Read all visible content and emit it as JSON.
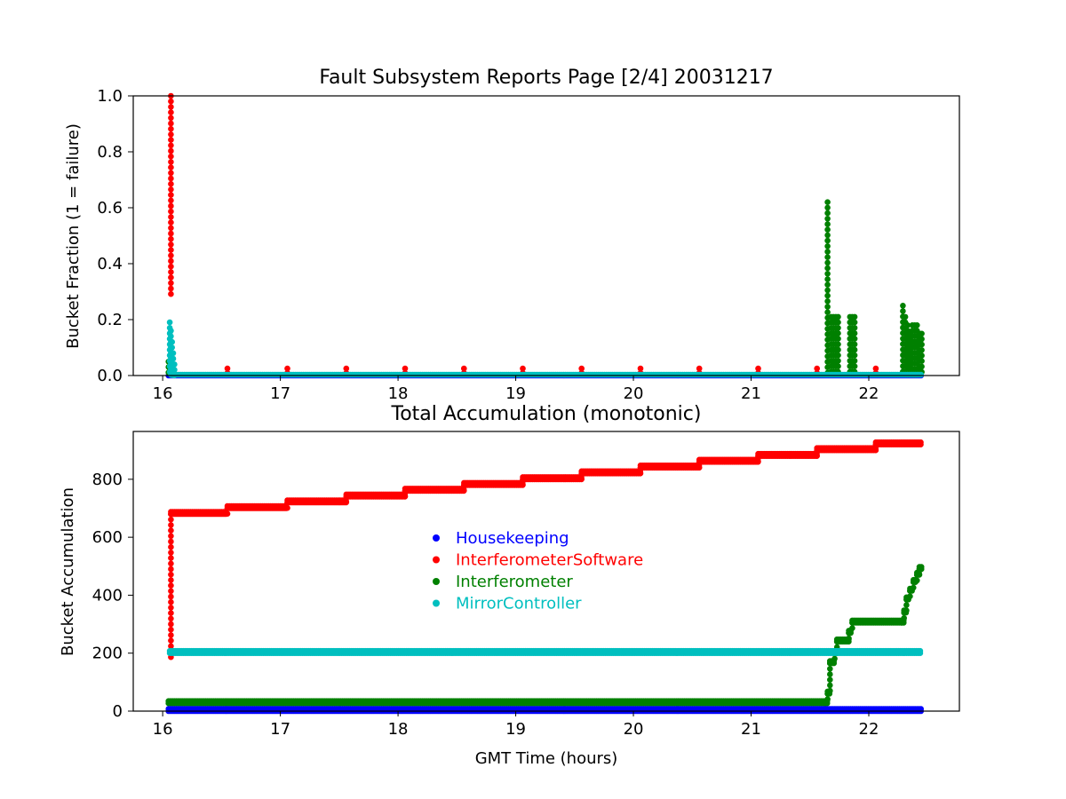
{
  "chart_data": [
    {
      "type": "scatter",
      "title": "Fault Subsystem Reports Page [2/4] 20031217",
      "xlabel": "",
      "ylabel": "Bucket Fraction (1 = failure)",
      "xlim": [
        15.75,
        22.77
      ],
      "ylim": [
        0,
        1
      ],
      "xticks": [
        "16",
        "17",
        "18",
        "19",
        "20",
        "21",
        "22"
      ],
      "yticks": [
        "0.0",
        "0.2",
        "0.4",
        "0.6",
        "0.8",
        "1.0"
      ],
      "grid": false,
      "series": [
        {
          "name": "Housekeeping",
          "color": "#0000ff",
          "baseline": {
            "x_start": 16.05,
            "x_end": 22.45,
            "y": 0
          },
          "points": []
        },
        {
          "name": "InterferometerSoftware",
          "color": "#ff0000",
          "vertical_spikes": [
            {
              "x": 16.07,
              "y_from": 0.28,
              "y_to": 1.0
            }
          ],
          "points": [
            [
              16.55,
              0.025
            ],
            [
              17.06,
              0.025
            ],
            [
              17.56,
              0.025
            ],
            [
              18.06,
              0.025
            ],
            [
              18.56,
              0.025
            ],
            [
              19.06,
              0.025
            ],
            [
              19.56,
              0.025
            ],
            [
              20.06,
              0.025
            ],
            [
              20.56,
              0.025
            ],
            [
              21.06,
              0.025
            ],
            [
              21.56,
              0.025
            ],
            [
              22.06,
              0.025
            ]
          ]
        },
        {
          "name": "Interferometer",
          "color": "#008000",
          "vertical_spikes": [
            {
              "x": 16.05,
              "y_from": 0,
              "y_to": 0.05
            },
            {
              "x": 21.65,
              "y_from": 0,
              "y_to": 0.62
            },
            {
              "x": 21.68,
              "y_from": 0,
              "y_to": 0.21
            },
            {
              "x": 21.7,
              "y_from": 0,
              "y_to": 0.21
            },
            {
              "x": 21.72,
              "y_from": 0,
              "y_to": 0.21
            },
            {
              "x": 21.74,
              "y_from": 0,
              "y_to": 0.21
            },
            {
              "x": 21.84,
              "y_from": 0,
              "y_to": 0.21
            },
            {
              "x": 21.86,
              "y_from": 0,
              "y_to": 0.21
            },
            {
              "x": 21.88,
              "y_from": 0,
              "y_to": 0.21
            },
            {
              "x": 22.29,
              "y_from": 0,
              "y_to": 0.25
            },
            {
              "x": 22.31,
              "y_from": 0,
              "y_to": 0.21
            },
            {
              "x": 22.33,
              "y_from": 0,
              "y_to": 0.18
            },
            {
              "x": 22.35,
              "y_from": 0,
              "y_to": 0.15
            },
            {
              "x": 22.37,
              "y_from": 0,
              "y_to": 0.18
            },
            {
              "x": 22.39,
              "y_from": 0,
              "y_to": 0.18
            },
            {
              "x": 22.41,
              "y_from": 0,
              "y_to": 0.18
            },
            {
              "x": 22.43,
              "y_from": 0,
              "y_to": 0.15
            },
            {
              "x": 22.45,
              "y_from": 0,
              "y_to": 0.15
            }
          ],
          "points": []
        },
        {
          "name": "MirrorController",
          "color": "#00bfbf",
          "vertical_spikes": [
            {
              "x": 16.06,
              "y_from": 0,
              "y_to": 0.19
            }
          ],
          "decay": [
            [
              16.07,
              0.16
            ],
            [
              16.08,
              0.12
            ],
            [
              16.09,
              0.08
            ],
            [
              16.1,
              0.04
            ]
          ],
          "baseline": {
            "x_start": 16.1,
            "x_end": 22.45,
            "y": 0.003
          },
          "points": []
        }
      ]
    },
    {
      "type": "scatter",
      "title": "Total Accumulation (monotonic)",
      "xlabel": "GMT Time (hours)",
      "ylabel": "Bucket Accumulation",
      "xlim": [
        15.75,
        22.77
      ],
      "ylim": [
        0,
        965
      ],
      "xticks": [
        "16",
        "17",
        "18",
        "19",
        "20",
        "21",
        "22"
      ],
      "yticks": [
        "0",
        "200",
        "400",
        "600",
        "800"
      ],
      "grid": false,
      "legend": {
        "placement": "center",
        "entries": [
          "Housekeeping",
          "InterferometerSoftware",
          "Interferometer",
          "MirrorController"
        ]
      },
      "series": [
        {
          "name": "Housekeeping",
          "color": "#0000ff",
          "steps": [
            [
              16.05,
              0
            ],
            [
              22.45,
              0
            ]
          ]
        },
        {
          "name": "InterferometerSoftware",
          "color": "#ff0000",
          "rise": {
            "x": 16.07,
            "y_from": 180,
            "y_to": 680
          },
          "steps": [
            [
              16.07,
              680
            ],
            [
              16.55,
              700
            ],
            [
              17.06,
              720
            ],
            [
              17.56,
              740
            ],
            [
              18.06,
              760
            ],
            [
              18.56,
              780
            ],
            [
              19.06,
              800
            ],
            [
              19.56,
              820
            ],
            [
              20.06,
              840
            ],
            [
              20.56,
              860
            ],
            [
              21.06,
              880
            ],
            [
              21.56,
              900
            ],
            [
              22.06,
              920
            ],
            [
              22.45,
              920
            ]
          ]
        },
        {
          "name": "Interferometer",
          "color": "#008000",
          "steps": [
            [
              16.05,
              27
            ],
            [
              21.63,
              27
            ],
            [
              21.65,
              60
            ],
            [
              21.67,
              165
            ],
            [
              21.71,
              200
            ],
            [
              21.73,
              240
            ],
            [
              21.83,
              270
            ],
            [
              21.86,
              305
            ],
            [
              22.28,
              305
            ],
            [
              22.3,
              340
            ],
            [
              22.32,
              385
            ],
            [
              22.35,
              415
            ],
            [
              22.38,
              445
            ],
            [
              22.41,
              470
            ],
            [
              22.43,
              490
            ],
            [
              22.45,
              490
            ]
          ]
        },
        {
          "name": "MirrorController",
          "color": "#00bfbf",
          "steps": [
            [
              16.06,
              200
            ],
            [
              22.45,
              200
            ]
          ]
        }
      ]
    }
  ]
}
